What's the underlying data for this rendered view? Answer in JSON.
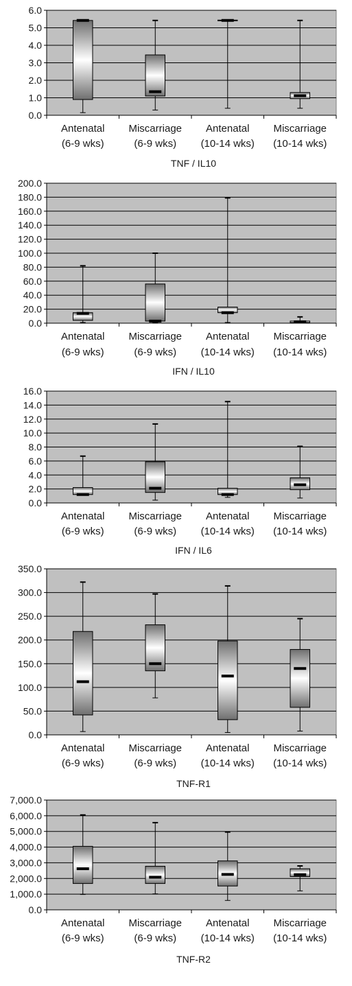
{
  "chart_data": [
    {
      "type": "box",
      "title": "TNF / IL10",
      "ylim": [
        0,
        6
      ],
      "yticks": [
        "0.0",
        "1.0",
        "2.0",
        "3.0",
        "4.0",
        "5.0",
        "6.0"
      ],
      "ytick_values": [
        0,
        1,
        2,
        3,
        4,
        5,
        6
      ],
      "grid": true,
      "categories": [
        {
          "line1": "Antenatal",
          "line2": "(6-9 wks)"
        },
        {
          "line1": "Miscarriage",
          "line2": "(6-9 wks)"
        },
        {
          "line1": "Antenatal",
          "line2": "(10-14 wks)"
        },
        {
          "line1": "Miscarriage",
          "line2": "(10-14 wks)"
        }
      ],
      "boxes": [
        {
          "min": 0.15,
          "q1": 0.9,
          "median": 5.42,
          "q3": 5.42,
          "max": 5.45
        },
        {
          "min": 0.3,
          "q1": 1.1,
          "median": 1.35,
          "q3": 3.45,
          "max": 5.42
        },
        {
          "min": 0.4,
          "q1": 5.4,
          "median": 5.42,
          "q3": 5.44,
          "max": 5.45
        },
        {
          "min": 0.4,
          "q1": 0.95,
          "median": 1.12,
          "q3": 1.3,
          "max": 5.42
        }
      ]
    },
    {
      "type": "box",
      "title": "IFN / IL10",
      "ylim": [
        0,
        200
      ],
      "yticks": [
        "0.0",
        "20.0",
        "40.0",
        "60.0",
        "80.0",
        "100.0",
        "120.0",
        "140.0",
        "160.0",
        "180.0",
        "200.0"
      ],
      "ytick_values": [
        0,
        20,
        40,
        60,
        80,
        100,
        120,
        140,
        160,
        180,
        200
      ],
      "grid": true,
      "categories": [
        {
          "line1": "Antenatal",
          "line2": "(6-9 wks)"
        },
        {
          "line1": "Miscarriage",
          "line2": "(6-9 wks)"
        },
        {
          "line1": "Antenatal",
          "line2": "(10-14 wks)"
        },
        {
          "line1": "Miscarriage",
          "line2": "(10-14 wks)"
        }
      ],
      "boxes": [
        {
          "min": 1,
          "q1": 4,
          "median": 14,
          "q3": 15,
          "max": 82
        },
        {
          "min": 1,
          "q1": 3,
          "median": 3,
          "q3": 56,
          "max": 100
        },
        {
          "min": 1,
          "q1": 15,
          "median": 15,
          "q3": 23,
          "max": 179
        },
        {
          "min": 0.5,
          "q1": 1,
          "median": 2,
          "q3": 3,
          "max": 9
        }
      ]
    },
    {
      "type": "box",
      "title": "IFN / IL6",
      "ylim": [
        0,
        16
      ],
      "yticks": [
        "0.0",
        "2.0",
        "4.0",
        "6.0",
        "8.0",
        "10.0",
        "12.0",
        "14.0",
        "16.0"
      ],
      "ytick_values": [
        0,
        2,
        4,
        6,
        8,
        10,
        12,
        14,
        16
      ],
      "grid": true,
      "categories": [
        {
          "line1": "Antenatal",
          "line2": "(6-9 wks)"
        },
        {
          "line1": "Miscarriage",
          "line2": "(6-9 wks)"
        },
        {
          "line1": "Antenatal",
          "line2": "(10-14 wks)"
        },
        {
          "line1": "Miscarriage",
          "line2": "(10-14 wks)"
        }
      ],
      "boxes": [
        {
          "min": 1.2,
          "q1": 1.2,
          "median": 1.2,
          "q3": 2.2,
          "max": 6.7
        },
        {
          "min": 0.4,
          "q1": 1.5,
          "median": 2.1,
          "q3": 5.9,
          "max": 11.3
        },
        {
          "min": 0.8,
          "q1": 1.2,
          "median": 1.2,
          "q3": 2.1,
          "max": 14.5
        },
        {
          "min": 0.7,
          "q1": 1.9,
          "median": 2.6,
          "q3": 3.6,
          "max": 8.1
        }
      ]
    },
    {
      "type": "box",
      "title": "TNF-R1",
      "ylim": [
        0,
        350
      ],
      "yticks": [
        "0.0",
        "50.0",
        "100.0",
        "150.0",
        "200.0",
        "250.0",
        "300.0",
        "350.0"
      ],
      "ytick_values": [
        0,
        50,
        100,
        150,
        200,
        250,
        300,
        350
      ],
      "grid": true,
      "categories": [
        {
          "line1": "Antenatal",
          "line2": "(6-9 wks)"
        },
        {
          "line1": "Miscarriage",
          "line2": "(6-9 wks)"
        },
        {
          "line1": "Antenatal",
          "line2": "(10-14 wks)"
        },
        {
          "line1": "Miscarriage",
          "line2": "(10-14 wks)"
        }
      ],
      "boxes": [
        {
          "min": 7,
          "q1": 42,
          "median": 112,
          "q3": 218,
          "max": 322
        },
        {
          "min": 78,
          "q1": 135,
          "median": 150,
          "q3": 232,
          "max": 297
        },
        {
          "min": 5,
          "q1": 32,
          "median": 124,
          "q3": 198,
          "max": 314
        },
        {
          "min": 8,
          "q1": 58,
          "median": 140,
          "q3": 180,
          "max": 245
        }
      ]
    },
    {
      "type": "box",
      "title": "TNF-R2",
      "ylim": [
        0,
        7000
      ],
      "yticks": [
        "0.0",
        "1,000.0",
        "2,000.0",
        "3,000.0",
        "4,000.0",
        "5,000.0",
        "6,000.0",
        "7,000.0"
      ],
      "ytick_values": [
        0,
        1000,
        2000,
        3000,
        4000,
        5000,
        6000,
        7000
      ],
      "grid": true,
      "categories": [
        {
          "line1": "Antenatal",
          "line2": "(6-9 wks)"
        },
        {
          "line1": "Miscarriage",
          "line2": "(6-9 wks)"
        },
        {
          "line1": "Antenatal",
          "line2": "(10-14 wks)"
        },
        {
          "line1": "Miscarriage",
          "line2": "(10-14 wks)"
        }
      ],
      "boxes": [
        {
          "min": 980,
          "q1": 1680,
          "median": 2620,
          "q3": 4050,
          "max": 6050
        },
        {
          "min": 1020,
          "q1": 1680,
          "median": 2080,
          "q3": 2780,
          "max": 5560
        },
        {
          "min": 600,
          "q1": 1520,
          "median": 2260,
          "q3": 3120,
          "max": 4960
        },
        {
          "min": 1210,
          "q1": 2120,
          "median": 2240,
          "q3": 2620,
          "max": 2800
        }
      ]
    }
  ]
}
